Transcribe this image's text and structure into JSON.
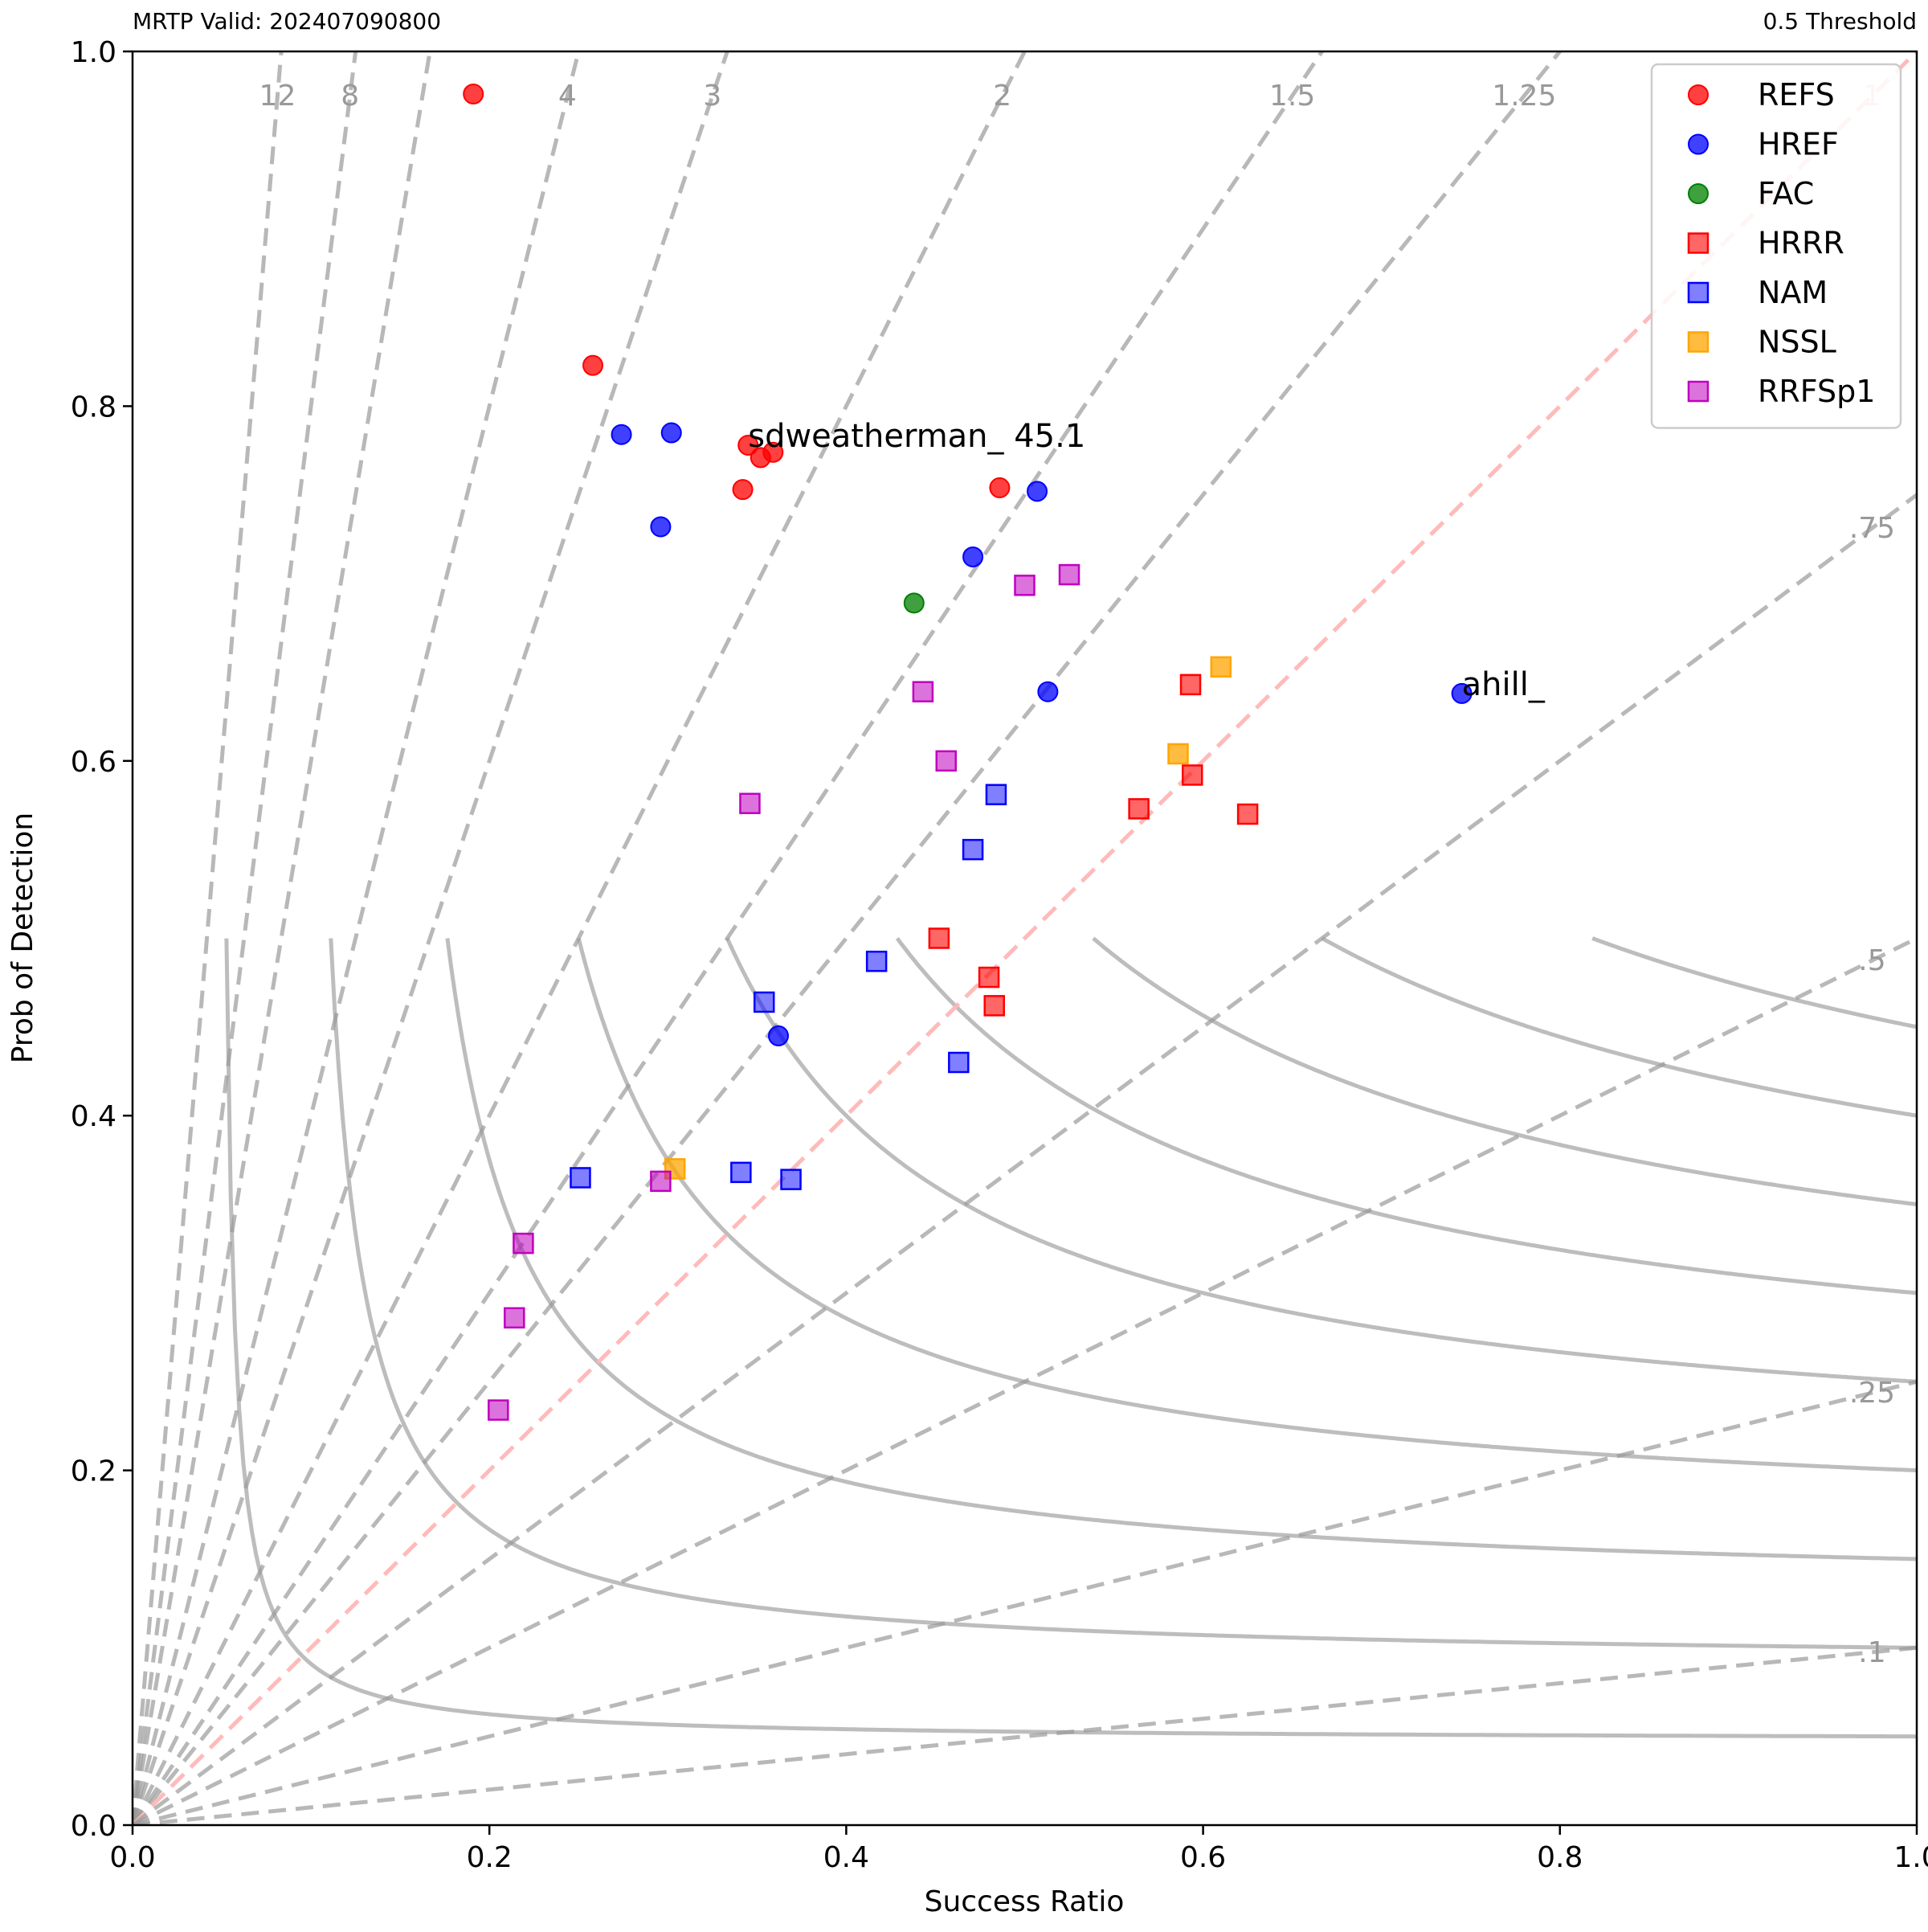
{
  "header": {
    "left_title": "MRTP Valid: 202407090800",
    "right_title": "0.5 Threshold"
  },
  "colors": {
    "REFS": "#ff0000",
    "HREF": "#0000ff",
    "FAC": "#008000",
    "HRRR": "#ff0000",
    "NAM": "#0000ff",
    "NSSL": "#ffa500",
    "RRFSp1": "#c000c0",
    "csi_line": "#9a9a9a",
    "bias_line": "#9a9a9a",
    "bias_one_line": "#ffb6b6"
  },
  "chart_data": {
    "type": "scatter",
    "title": "",
    "xlabel": "Success Ratio",
    "ylabel": "Prob of Detection",
    "xlim": [
      0,
      1
    ],
    "ylim": [
      0,
      1
    ],
    "xticks": [
      "0.0",
      "0.2",
      "0.4",
      "0.6",
      "0.8",
      "1.0"
    ],
    "yticks": [
      "0.0",
      "0.2",
      "0.4",
      "0.6",
      "0.8",
      "1.0"
    ],
    "grid": false,
    "legend_position": "top-right",
    "background": {
      "csi_levels": [
        0.05,
        0.1,
        0.15,
        0.2,
        0.25,
        0.3,
        0.35,
        0.4,
        0.45,
        0.5,
        0.55,
        0.6,
        0.65,
        0.7
      ],
      "bias_lines": [
        {
          "bias": 12,
          "label": "12"
        },
        {
          "bias": 8,
          "label": "8"
        },
        {
          "bias": 6,
          "label": ""
        },
        {
          "bias": 4,
          "label": "4"
        },
        {
          "bias": 3,
          "label": "3"
        },
        {
          "bias": 2,
          "label": "2"
        },
        {
          "bias": 1.5,
          "label": "1.5"
        },
        {
          "bias": 1.25,
          "label": "1.25"
        },
        {
          "bias": 1,
          "label": "1"
        },
        {
          "bias": 0.75,
          "label": ".75"
        },
        {
          "bias": 0.5,
          "label": ".5"
        },
        {
          "bias": 0.25,
          "label": ".25"
        },
        {
          "bias": 0.1,
          "label": ".1"
        }
      ]
    },
    "series": [
      {
        "name": "REFS",
        "marker": "circle",
        "alpha": 0.75,
        "points": [
          {
            "x": 0.191,
            "y": 0.976
          },
          {
            "x": 0.258,
            "y": 0.823
          },
          {
            "x": 0.345,
            "y": 0.778
          },
          {
            "x": 0.352,
            "y": 0.771
          },
          {
            "x": 0.359,
            "y": 0.774
          },
          {
            "x": 0.342,
            "y": 0.753
          },
          {
            "x": 0.486,
            "y": 0.754
          }
        ]
      },
      {
        "name": "HREF",
        "marker": "circle",
        "alpha": 0.75,
        "points": [
          {
            "x": 0.274,
            "y": 0.784
          },
          {
            "x": 0.302,
            "y": 0.785
          },
          {
            "x": 0.296,
            "y": 0.732
          },
          {
            "x": 0.507,
            "y": 0.752
          },
          {
            "x": 0.471,
            "y": 0.715
          },
          {
            "x": 0.513,
            "y": 0.639
          },
          {
            "x": 0.362,
            "y": 0.445
          },
          {
            "x": 0.745,
            "y": 0.638
          }
        ]
      },
      {
        "name": "FAC",
        "marker": "circle",
        "alpha": 0.75,
        "points": [
          {
            "x": 0.438,
            "y": 0.689
          }
        ]
      },
      {
        "name": "HRRR",
        "marker": "square",
        "alpha": 0.6,
        "points": [
          {
            "x": 0.593,
            "y": 0.643
          },
          {
            "x": 0.594,
            "y": 0.592
          },
          {
            "x": 0.564,
            "y": 0.573
          },
          {
            "x": 0.625,
            "y": 0.57
          },
          {
            "x": 0.452,
            "y": 0.5
          },
          {
            "x": 0.48,
            "y": 0.478
          },
          {
            "x": 0.483,
            "y": 0.462
          }
        ]
      },
      {
        "name": "NAM",
        "marker": "square",
        "alpha": 0.5,
        "points": [
          {
            "x": 0.484,
            "y": 0.581
          },
          {
            "x": 0.471,
            "y": 0.55
          },
          {
            "x": 0.417,
            "y": 0.487
          },
          {
            "x": 0.354,
            "y": 0.464
          },
          {
            "x": 0.463,
            "y": 0.43
          },
          {
            "x": 0.341,
            "y": 0.368
          },
          {
            "x": 0.369,
            "y": 0.364
          },
          {
            "x": 0.251,
            "y": 0.365
          }
        ]
      },
      {
        "name": "NSSL",
        "marker": "square",
        "alpha": 0.75,
        "points": [
          {
            "x": 0.61,
            "y": 0.653
          },
          {
            "x": 0.586,
            "y": 0.604
          },
          {
            "x": 0.304,
            "y": 0.37
          }
        ]
      },
      {
        "name": "RRFSp1",
        "marker": "square",
        "alpha": 0.55,
        "points": [
          {
            "x": 0.525,
            "y": 0.705
          },
          {
            "x": 0.5,
            "y": 0.699
          },
          {
            "x": 0.443,
            "y": 0.639
          },
          {
            "x": 0.456,
            "y": 0.6
          },
          {
            "x": 0.346,
            "y": 0.576
          },
          {
            "x": 0.296,
            "y": 0.363
          },
          {
            "x": 0.219,
            "y": 0.328
          },
          {
            "x": 0.214,
            "y": 0.286
          },
          {
            "x": 0.205,
            "y": 0.234
          }
        ]
      }
    ],
    "annotations": [
      {
        "text": "sdweatherman_ 45.1",
        "x": 0.345,
        "y": 0.778
      },
      {
        "text": "ahill_",
        "x": 0.745,
        "y": 0.638
      }
    ]
  }
}
